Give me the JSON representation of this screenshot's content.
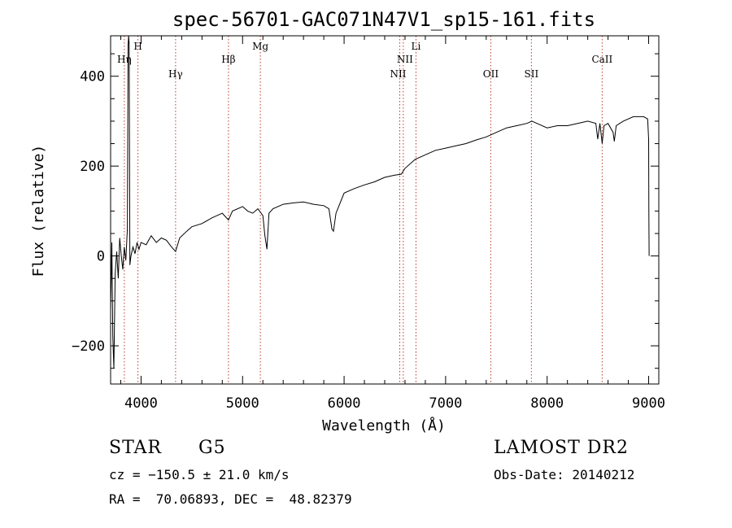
{
  "chart_data": {
    "type": "line",
    "title": "spec-56701-GAC071N47V1_sp15-161.fits",
    "xlabel": "Wavelength (Å)",
    "ylabel": "Flux (relative)",
    "xlim": [
      3700,
      9100
    ],
    "ylim": [
      -285,
      490
    ],
    "xticks": [
      4000,
      5000,
      6000,
      7000,
      8000,
      9000
    ],
    "yticks": [
      -200,
      0,
      200,
      400
    ],
    "grid": false,
    "series": [
      {
        "values_format": "[wavelength, flux]",
        "points": [
          [
            3700,
            -120
          ],
          [
            3712,
            30
          ],
          [
            3722,
            -180
          ],
          [
            3732,
            -250
          ],
          [
            3745,
            -40
          ],
          [
            3760,
            10
          ],
          [
            3775,
            -50
          ],
          [
            3790,
            40
          ],
          [
            3805,
            0
          ],
          [
            3820,
            -30
          ],
          [
            3835,
            20
          ],
          [
            3850,
            -10
          ],
          [
            3865,
            60
          ],
          [
            3872,
            470
          ],
          [
            3878,
            490
          ],
          [
            3883,
            470
          ],
          [
            3890,
            -20
          ],
          [
            3900,
            0
          ],
          [
            3920,
            20
          ],
          [
            3940,
            5
          ],
          [
            3960,
            30
          ],
          [
            3980,
            15
          ],
          [
            4000,
            30
          ],
          [
            4050,
            25
          ],
          [
            4100,
            45
          ],
          [
            4150,
            30
          ],
          [
            4200,
            40
          ],
          [
            4250,
            35
          ],
          [
            4300,
            20
          ],
          [
            4340,
            10
          ],
          [
            4380,
            40
          ],
          [
            4450,
            55
          ],
          [
            4500,
            65
          ],
          [
            4600,
            72
          ],
          [
            4700,
            85
          ],
          [
            4800,
            95
          ],
          [
            4861,
            80
          ],
          [
            4900,
            100
          ],
          [
            5000,
            110
          ],
          [
            5050,
            100
          ],
          [
            5100,
            95
          ],
          [
            5150,
            105
          ],
          [
            5200,
            90
          ],
          [
            5220,
            45
          ],
          [
            5240,
            15
          ],
          [
            5260,
            95
          ],
          [
            5300,
            105
          ],
          [
            5400,
            115
          ],
          [
            5500,
            118
          ],
          [
            5600,
            120
          ],
          [
            5700,
            115
          ],
          [
            5800,
            112
          ],
          [
            5850,
            105
          ],
          [
            5880,
            60
          ],
          [
            5895,
            55
          ],
          [
            5920,
            95
          ],
          [
            6000,
            140
          ],
          [
            6100,
            150
          ],
          [
            6200,
            158
          ],
          [
            6300,
            165
          ],
          [
            6400,
            175
          ],
          [
            6500,
            180
          ],
          [
            6563,
            182
          ],
          [
            6600,
            195
          ],
          [
            6700,
            215
          ],
          [
            6800,
            225
          ],
          [
            6900,
            235
          ],
          [
            7000,
            240
          ],
          [
            7100,
            245
          ],
          [
            7200,
            250
          ],
          [
            7300,
            258
          ],
          [
            7400,
            265
          ],
          [
            7500,
            275
          ],
          [
            7600,
            285
          ],
          [
            7700,
            290
          ],
          [
            7800,
            295
          ],
          [
            7850,
            300
          ],
          [
            7900,
            295
          ],
          [
            8000,
            285
          ],
          [
            8100,
            290
          ],
          [
            8200,
            290
          ],
          [
            8300,
            295
          ],
          [
            8400,
            300
          ],
          [
            8480,
            295
          ],
          [
            8498,
            260
          ],
          [
            8520,
            295
          ],
          [
            8542,
            250
          ],
          [
            8560,
            290
          ],
          [
            8600,
            295
          ],
          [
            8650,
            275
          ],
          [
            8662,
            255
          ],
          [
            8680,
            290
          ],
          [
            8750,
            300
          ],
          [
            8850,
            310
          ],
          [
            8950,
            310
          ],
          [
            8990,
            305
          ],
          [
            9000,
            260
          ],
          [
            9002,
            90
          ],
          [
            9005,
            0
          ]
        ]
      }
    ],
    "lines": [
      {
        "name": "Hη",
        "wavelength": 3835
      },
      {
        "name": "H",
        "wavelength": 3969
      },
      {
        "name": "Hγ",
        "wavelength": 4340
      },
      {
        "name": "Hβ",
        "wavelength": 4861
      },
      {
        "name": "Mg",
        "wavelength": 5175
      },
      {
        "name": "NII",
        "wavelength": 6548
      },
      {
        "name": "NII",
        "wavelength": 6583
      },
      {
        "name": "Li",
        "wavelength": 6708
      },
      {
        "name": "OII",
        "wavelength": 7445
      },
      {
        "name": "SII",
        "wavelength": 7845
      },
      {
        "name": "CaII",
        "wavelength": 8542
      }
    ]
  },
  "info": {
    "class": "STAR",
    "subclass": "G5",
    "survey": "LAMOST DR2",
    "cz": "cz = −150.5 ± 21.0 km/s",
    "obs_date": "Obs-Date: 20140212",
    "radec": "RA =  70.06893, DEC =  48.82379"
  },
  "colors": {
    "line_marker": "#c0392b",
    "spectrum": "#000000"
  }
}
